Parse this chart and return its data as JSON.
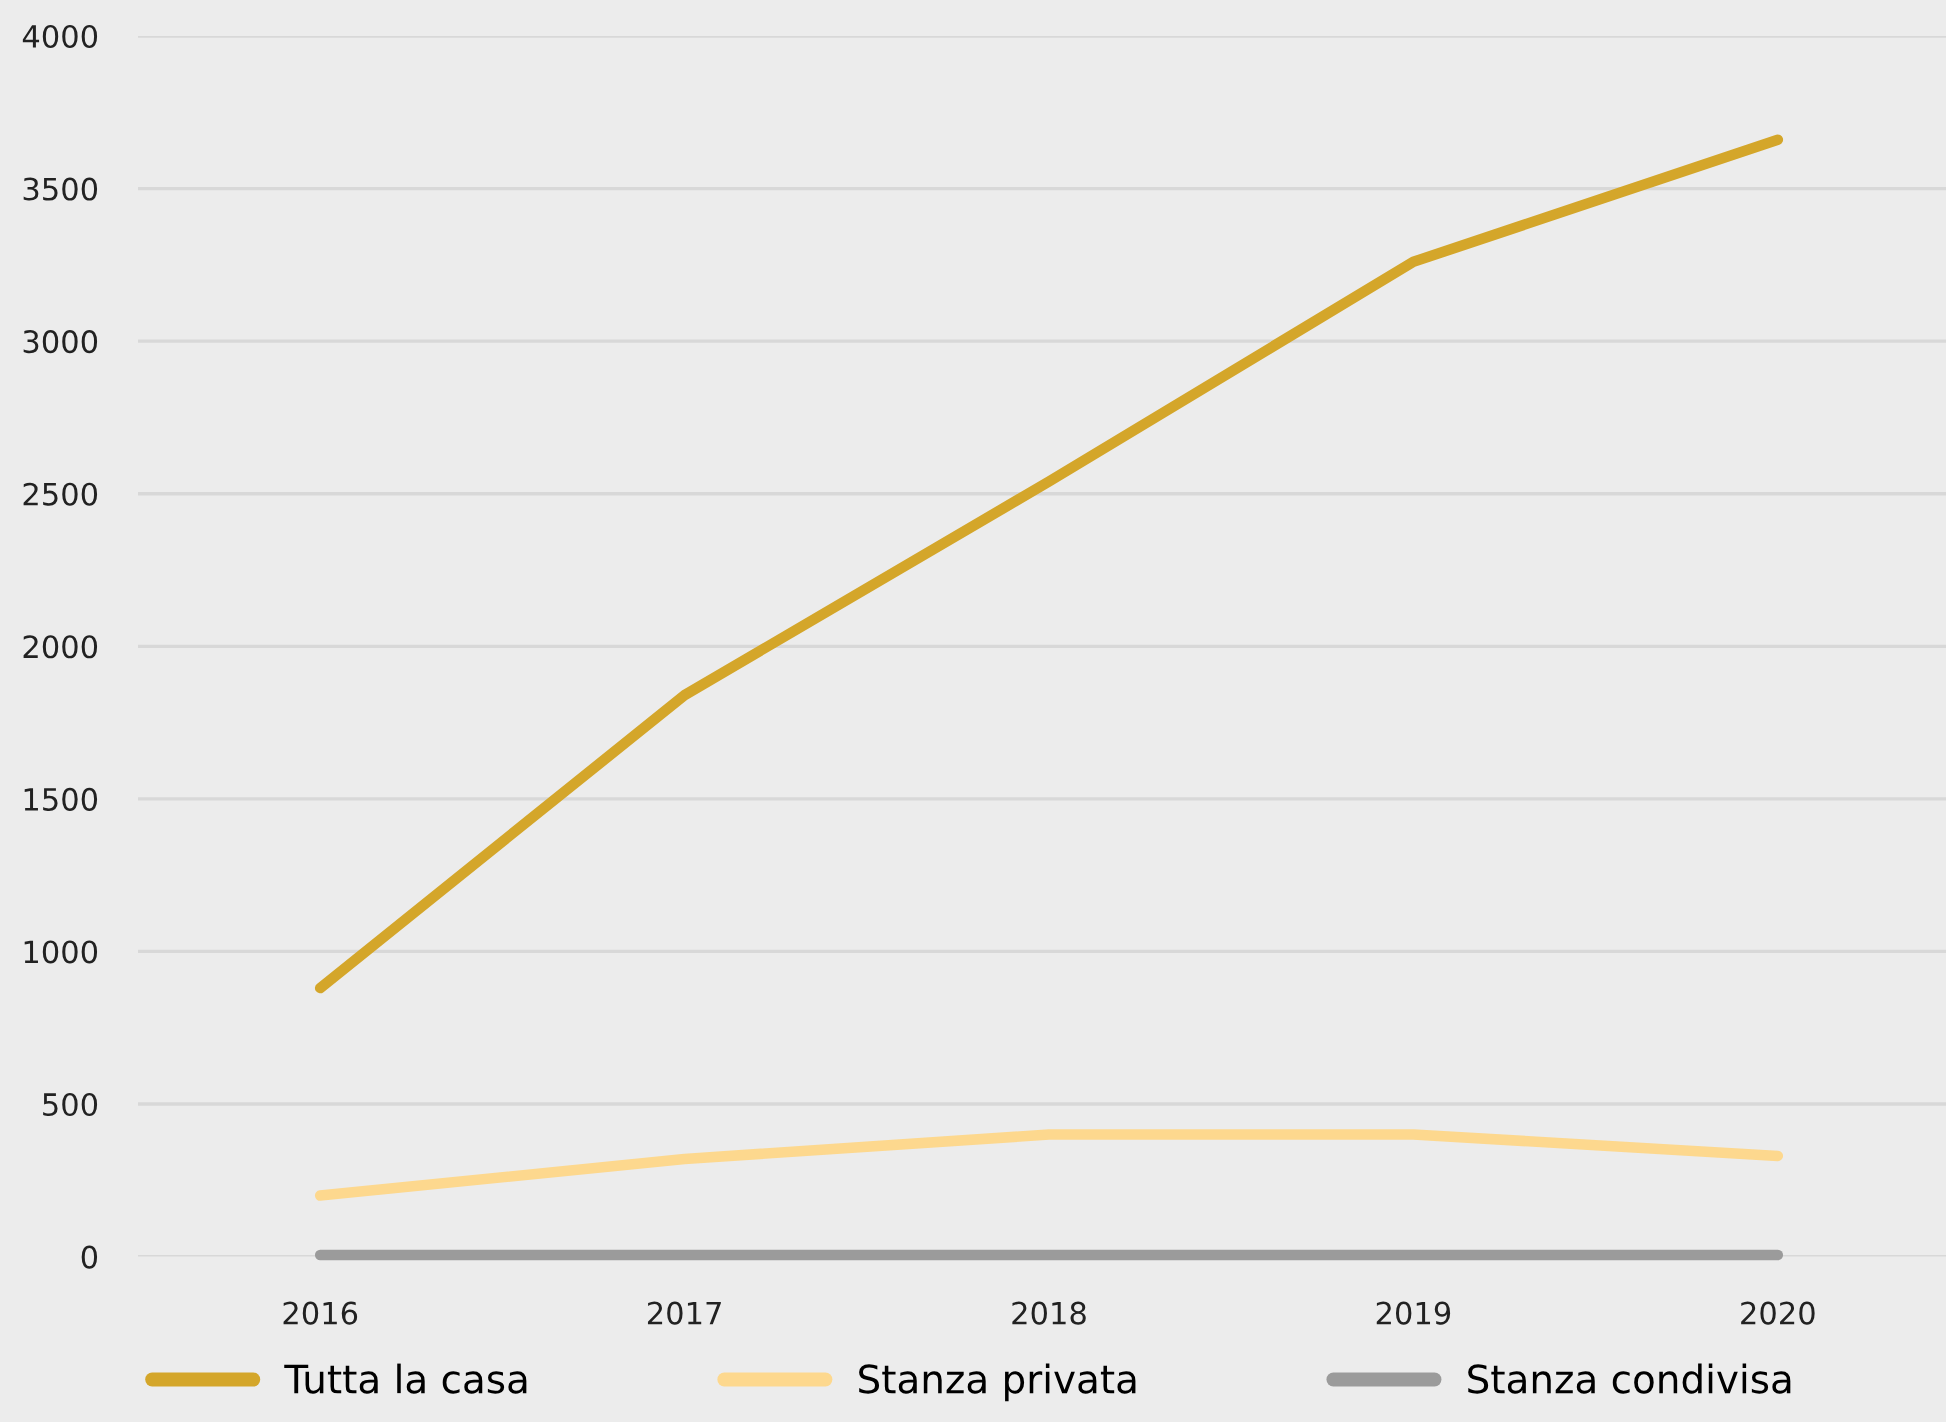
{
  "chart_data": {
    "type": "line",
    "categories": [
      "2016",
      "2017",
      "2018",
      "2019",
      "2020"
    ],
    "series": [
      {
        "name": "Tutta la casa",
        "color": "#d4a62a",
        "values": [
          880,
          1840,
          2540,
          3260,
          3660
        ]
      },
      {
        "name": "Stanza privata",
        "color": "#fdd88e",
        "values": [
          200,
          320,
          400,
          400,
          330
        ]
      },
      {
        "name": "Stanza condivisa",
        "color": "#9b9b9b",
        "values": [
          5,
          5,
          5,
          5,
          5
        ]
      }
    ],
    "ylim": [
      0,
      4000
    ],
    "yticks": [
      0,
      500,
      1000,
      1500,
      2000,
      2500,
      3000,
      3500,
      4000
    ],
    "grid": "y",
    "legend": "bottom",
    "marker": "none",
    "line_style": "solid"
  }
}
